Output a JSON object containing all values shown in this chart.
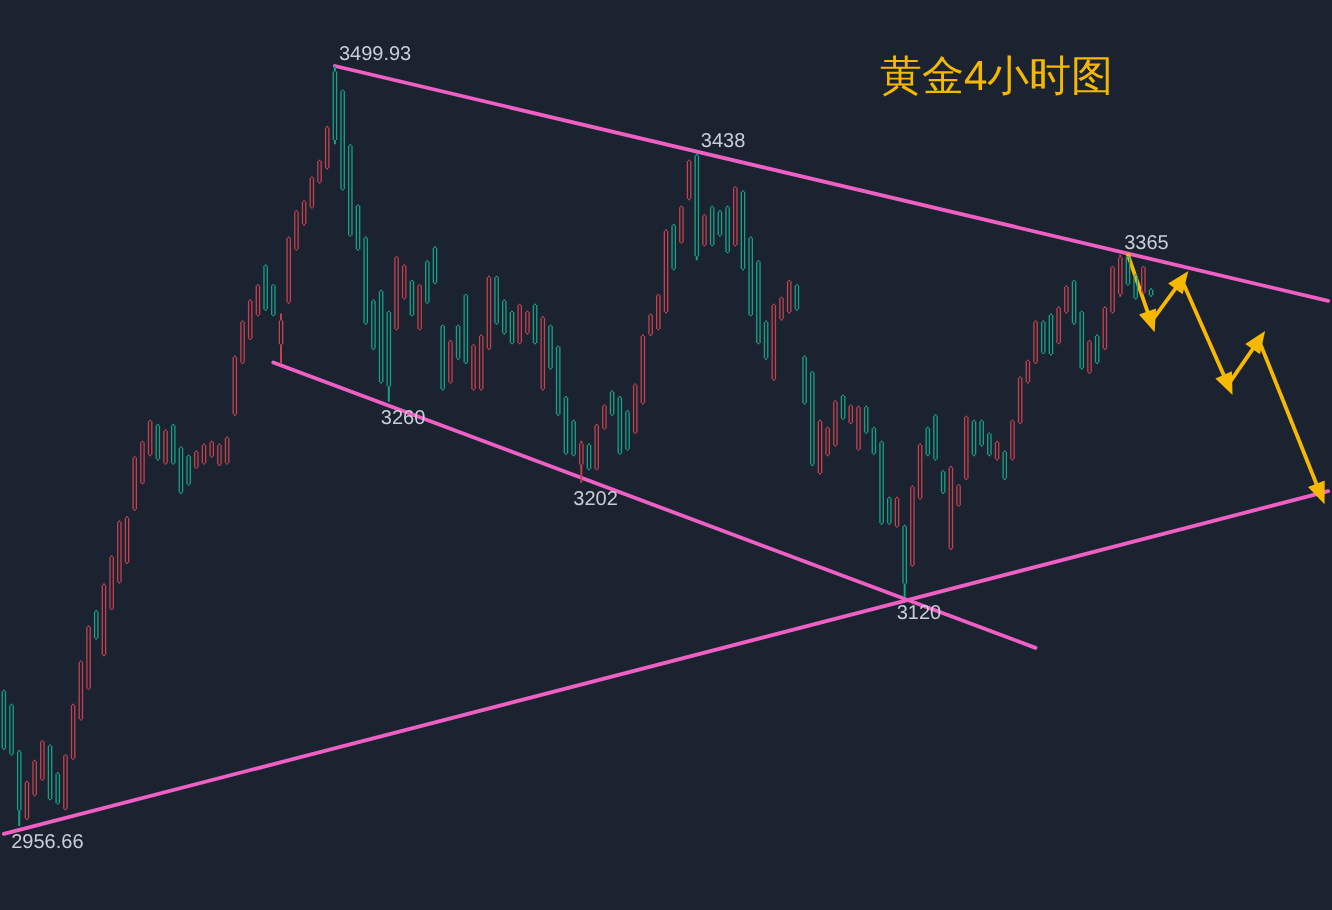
{
  "chart_data": {
    "type": "candlestick",
    "title": "黄金4小时图",
    "categories": [
      null,
      null,
      null,
      null,
      null,
      null,
      null,
      null,
      null,
      null,
      null,
      null,
      null,
      null,
      null,
      null,
      null,
      null,
      null,
      null,
      null,
      null,
      null,
      null,
      null,
      null,
      null,
      null,
      null,
      null,
      null,
      null,
      null,
      null,
      null,
      null,
      null,
      null,
      null,
      null,
      null,
      null,
      null,
      null,
      null,
      null,
      null,
      null,
      null,
      null,
      null,
      null,
      null,
      null,
      null,
      null,
      null,
      null,
      null,
      null,
      null,
      null,
      null,
      null,
      null,
      null,
      null,
      null,
      null,
      null,
      null,
      null,
      null,
      null,
      null,
      null,
      null,
      null,
      null,
      null,
      null,
      null,
      null,
      null,
      null,
      null,
      null,
      null,
      null,
      null,
      null,
      null,
      null,
      null,
      null,
      null,
      null,
      null,
      null,
      null,
      null,
      null,
      null,
      null,
      null,
      null,
      null,
      null,
      null,
      null,
      null,
      null,
      null,
      null,
      null,
      null,
      null,
      null,
      null,
      null,
      null,
      null,
      null,
      null,
      null,
      null,
      null,
      null,
      null,
      null,
      null,
      null,
      null,
      null,
      null,
      null,
      null,
      null,
      null,
      null,
      null,
      null,
      null,
      null,
      null,
      null,
      null,
      null,
      null,
      null,
      null,
      null,
      null,
      null,
      null,
      null,
      null,
      null,
      null,
      null,
      null,
      null,
      null,
      null,
      null,
      null,
      null,
      null,
      null,
      null,
      null,
      null,
      null
    ],
    "ohlc": [
      [
        3053,
        3054,
        3011,
        3012
      ],
      [
        3043,
        3044,
        3007,
        3008
      ],
      [
        3010,
        3011,
        2956.66,
        2968
      ],
      [
        2962,
        2989,
        2961,
        2988
      ],
      [
        2979,
        3004,
        2978,
        3003
      ],
      [
        2990,
        3018,
        2989,
        3017
      ],
      [
        3014,
        3015,
        2975,
        2976
      ],
      [
        2994,
        2995,
        2972,
        2973
      ],
      [
        2969,
        3008,
        2968,
        3007
      ],
      [
        3005,
        3044,
        3004,
        3043
      ],
      [
        3033,
        3075,
        3032,
        3074
      ],
      [
        3055,
        3100,
        3054,
        3099
      ],
      [
        3110,
        3111,
        3090,
        3091
      ],
      [
        3079,
        3130,
        3078,
        3129
      ],
      [
        3112,
        3150,
        3111,
        3149
      ],
      [
        3131,
        3175,
        3130,
        3174
      ],
      [
        3145,
        3178,
        3144,
        3177
      ],
      [
        3183,
        3221,
        3182,
        3220
      ],
      [
        3202,
        3232,
        3201,
        3231
      ],
      [
        3222,
        3247,
        3221,
        3246
      ],
      [
        3243,
        3244,
        3218,
        3219
      ],
      [
        3216,
        3240,
        3215,
        3239
      ],
      [
        3243,
        3244,
        3215,
        3216
      ],
      [
        3227,
        3228,
        3194,
        3195
      ],
      [
        3221,
        3222,
        3200,
        3201
      ],
      [
        3213,
        3225,
        3212,
        3224
      ],
      [
        3216,
        3230,
        3215,
        3229
      ],
      [
        3221,
        3232,
        3220,
        3231
      ],
      [
        3215,
        3230,
        3214,
        3229
      ],
      [
        3216,
        3235,
        3215,
        3234
      ],
      [
        3251,
        3293,
        3250,
        3292
      ],
      [
        3288,
        3318,
        3287,
        3317
      ],
      [
        3305,
        3333,
        3304,
        3332
      ],
      [
        3322,
        3344,
        3321,
        3343
      ],
      [
        3357,
        3358,
        3325,
        3326
      ],
      [
        3343,
        3344,
        3321,
        3322
      ],
      [
        3301,
        3323,
        3287,
        3318
      ],
      [
        3331,
        3378,
        3330,
        3377
      ],
      [
        3369,
        3397,
        3368,
        3396
      ],
      [
        3387,
        3404,
        3386,
        3403
      ],
      [
        3399,
        3421,
        3398,
        3420
      ],
      [
        3417,
        3433,
        3416,
        3432
      ],
      [
        3427,
        3457,
        3426,
        3456
      ],
      [
        3496,
        3499.93,
        3444,
        3447
      ],
      [
        3482,
        3483,
        3411,
        3412
      ],
      [
        3443,
        3444,
        3378,
        3379
      ],
      [
        3400,
        3401,
        3368,
        3369
      ],
      [
        3377,
        3378,
        3315,
        3316
      ],
      [
        3332,
        3333,
        3297,
        3298
      ],
      [
        3339,
        3340,
        3273,
        3274
      ],
      [
        3324,
        3325,
        3260,
        3271
      ],
      [
        3312,
        3364,
        3311,
        3363
      ],
      [
        3334,
        3358,
        3333,
        3357
      ],
      [
        3346,
        3347,
        3321,
        3322
      ],
      [
        3312,
        3344,
        3311,
        3343
      ],
      [
        3360,
        3361,
        3330,
        3331
      ],
      [
        3370,
        3371,
        3344,
        3345
      ],
      [
        3314,
        3315,
        3268,
        3269
      ],
      [
        3274,
        3304,
        3273,
        3303
      ],
      [
        3314,
        3315,
        3290,
        3291
      ],
      [
        3336,
        3337,
        3287,
        3288
      ],
      [
        3269,
        3301,
        3268,
        3300
      ],
      [
        3269,
        3308,
        3268,
        3307
      ],
      [
        3298,
        3350,
        3297,
        3349
      ],
      [
        3349,
        3350,
        3315,
        3316
      ],
      [
        3332,
        3333,
        3308,
        3309
      ],
      [
        3324,
        3325,
        3301,
        3302
      ],
      [
        3302,
        3330,
        3301,
        3329
      ],
      [
        3309,
        3325,
        3308,
        3324
      ],
      [
        3329,
        3330,
        3301,
        3302
      ],
      [
        3269,
        3321,
        3268,
        3320
      ],
      [
        3314,
        3315,
        3283,
        3284
      ],
      [
        3299,
        3300,
        3250,
        3251
      ],
      [
        3263,
        3264,
        3222,
        3223
      ],
      [
        3246,
        3247,
        3221,
        3222
      ],
      [
        3215,
        3232,
        3202,
        3230
      ],
      [
        3229,
        3230,
        3211,
        3212
      ],
      [
        3212,
        3244,
        3211,
        3243
      ],
      [
        3241,
        3258,
        3240,
        3257
      ],
      [
        3267,
        3268,
        3250,
        3251
      ],
      [
        3263,
        3264,
        3222,
        3223
      ],
      [
        3253,
        3254,
        3225,
        3226
      ],
      [
        3238,
        3273,
        3237,
        3272
      ],
      [
        3259,
        3308,
        3258,
        3307
      ],
      [
        3308,
        3323,
        3307,
        3322
      ],
      [
        3312,
        3337,
        3311,
        3336
      ],
      [
        3324,
        3383,
        3323,
        3382
      ],
      [
        3386,
        3387,
        3354,
        3355
      ],
      [
        3374,
        3400,
        3373,
        3399
      ],
      [
        3405,
        3433,
        3404,
        3432
      ],
      [
        3436,
        3438,
        3361,
        3364
      ],
      [
        3372,
        3394,
        3371,
        3393
      ],
      [
        3399,
        3400,
        3371,
        3372
      ],
      [
        3396,
        3397,
        3378,
        3379
      ],
      [
        3399,
        3400,
        3366,
        3367
      ],
      [
        3372,
        3414,
        3371,
        3413
      ],
      [
        3410,
        3411,
        3354,
        3355
      ],
      [
        3377,
        3378,
        3321,
        3322
      ],
      [
        3360,
        3361,
        3301,
        3302
      ],
      [
        3317,
        3318,
        3290,
        3291
      ],
      [
        3276,
        3330,
        3275,
        3329
      ],
      [
        3319,
        3335,
        3318,
        3334
      ],
      [
        3324,
        3347,
        3323,
        3346
      ],
      [
        3343,
        3344,
        3325,
        3326
      ],
      [
        3292,
        3293,
        3258,
        3259
      ],
      [
        3281,
        3282,
        3214,
        3215
      ],
      [
        3209,
        3247,
        3208,
        3246
      ],
      [
        3222,
        3242,
        3221,
        3241
      ],
      [
        3229,
        3261,
        3228,
        3260
      ],
      [
        3264,
        3265,
        3247,
        3248
      ],
      [
        3245,
        3258,
        3244,
        3257
      ],
      [
        3226,
        3257,
        3225,
        3256
      ],
      [
        3256,
        3257,
        3237,
        3238
      ],
      [
        3241,
        3242,
        3222,
        3223
      ],
      [
        3231,
        3232,
        3172,
        3173
      ],
      [
        3191,
        3192,
        3172,
        3173
      ],
      [
        3171,
        3192,
        3170,
        3191
      ],
      [
        3171,
        3172,
        3120,
        3130
      ],
      [
        3143,
        3200,
        3142,
        3199
      ],
      [
        3191,
        3230,
        3190,
        3229
      ],
      [
        3241,
        3242,
        3221,
        3222
      ],
      [
        3250,
        3251,
        3218,
        3219
      ],
      [
        3210,
        3211,
        3194,
        3195
      ],
      [
        3155,
        3214,
        3154,
        3213
      ],
      [
        3186,
        3201,
        3185,
        3200
      ],
      [
        3205,
        3250,
        3204,
        3249
      ],
      [
        3246,
        3247,
        3221,
        3222
      ],
      [
        3246,
        3247,
        3228,
        3229
      ],
      [
        3237,
        3238,
        3221,
        3222
      ],
      [
        3219,
        3232,
        3218,
        3231
      ],
      [
        3224,
        3225,
        3204,
        3205
      ],
      [
        3219,
        3247,
        3218,
        3246
      ],
      [
        3245,
        3278,
        3244,
        3277
      ],
      [
        3274,
        3290,
        3273,
        3289
      ],
      [
        3288,
        3318,
        3287,
        3317
      ],
      [
        3317,
        3318,
        3294,
        3295
      ],
      [
        3322,
        3323,
        3293,
        3294
      ],
      [
        3302,
        3328,
        3301,
        3327
      ],
      [
        3324,
        3343,
        3323,
        3342
      ],
      [
        3346,
        3347,
        3315,
        3316
      ],
      [
        3324,
        3325,
        3283,
        3284
      ],
      [
        3281,
        3304,
        3280,
        3303
      ],
      [
        3307,
        3308,
        3287,
        3288
      ],
      [
        3298,
        3328,
        3297,
        3327
      ],
      [
        3324,
        3357,
        3323,
        3356
      ],
      [
        3337,
        3365,
        3335,
        3363
      ],
      [
        3363,
        3364,
        3343,
        3344
      ],
      [
        3350,
        3351,
        3333,
        3334
      ],
      [
        3338,
        3357,
        3337,
        3356
      ],
      [
        3340,
        3341,
        3335,
        3336
      ],
      null,
      null,
      null,
      null,
      null,
      null,
      null,
      null,
      null,
      null,
      null,
      null,
      null,
      null,
      null,
      null,
      null,
      null,
      null,
      null,
      null,
      null,
      null
    ],
    "series": [
      {
        "type": "line",
        "color": "#f060c4",
        "values": [
          null,
          null,
          null,
          null,
          null,
          null,
          null,
          null,
          null,
          null,
          null,
          null,
          null,
          null,
          null,
          null,
          null,
          null,
          null,
          null,
          null,
          null,
          null,
          null,
          null,
          null,
          null,
          null,
          null,
          null,
          null,
          null,
          null,
          null,
          null,
          null,
          null,
          null,
          null,
          null,
          null,
          null,
          null,
          3499.93,
          null,
          null,
          null,
          null,
          null,
          null,
          null,
          null,
          null,
          null,
          null,
          null,
          null,
          null,
          null,
          null,
          null,
          null,
          null,
          null,
          null,
          null,
          null,
          null,
          null,
          null,
          null,
          null,
          null,
          null,
          null,
          null,
          null,
          null,
          null,
          null,
          null,
          null,
          null,
          null,
          null,
          null,
          null,
          null,
          null,
          null,
          null,
          null,
          null,
          null,
          null,
          null,
          null,
          null,
          null,
          null,
          null,
          null,
          null,
          null,
          null,
          null,
          null,
          null,
          null,
          null,
          null,
          null,
          null,
          null,
          null,
          null,
          null,
          null,
          null,
          null,
          null,
          null,
          null,
          null,
          null,
          null,
          null,
          null,
          null,
          null,
          null,
          null,
          null,
          null,
          null,
          null,
          null,
          null,
          null,
          null,
          null,
          null,
          null,
          null,
          null,
          null,
          null,
          null,
          null,
          null,
          null,
          null,
          null,
          null,
          null,
          null,
          null,
          null,
          null,
          null,
          null,
          null,
          null,
          null,
          null,
          null,
          null,
          null,
          null,
          null,
          null,
          null,
          3332
        ]
      },
      {
        "type": "line",
        "color": "#f060c4",
        "values": [
          null,
          null,
          null,
          null,
          null,
          null,
          null,
          null,
          null,
          null,
          null,
          null,
          null,
          null,
          null,
          null,
          null,
          null,
          null,
          null,
          null,
          null,
          null,
          null,
          null,
          null,
          null,
          null,
          null,
          null,
          null,
          null,
          null,
          null,
          null,
          3288,
          null,
          null,
          null,
          null,
          null,
          null,
          null,
          null,
          null,
          null,
          null,
          null,
          null,
          null,
          null,
          null,
          null,
          null,
          null,
          null,
          null,
          null,
          null,
          null,
          null,
          null,
          null,
          null,
          null,
          null,
          null,
          null,
          null,
          null,
          null,
          null,
          null,
          null,
          null,
          null,
          null,
          null,
          null,
          null,
          null,
          null,
          null,
          null,
          null,
          null,
          null,
          null,
          null,
          null,
          null,
          null,
          null,
          null,
          null,
          null,
          null,
          null,
          null,
          null,
          null,
          null,
          null,
          null,
          null,
          null,
          null,
          null,
          null,
          null,
          null,
          null,
          null,
          null,
          null,
          null,
          null,
          null,
          null,
          null,
          null,
          null,
          null,
          null,
          null,
          null,
          null,
          null,
          null,
          null,
          null,
          null,
          null,
          null,
          3084,
          null,
          null,
          null,
          null,
          null,
          null,
          null,
          null,
          null,
          null,
          null,
          null,
          null,
          null,
          null,
          null,
          null,
          null,
          null,
          null,
          null,
          null,
          null,
          null,
          null,
          null,
          null,
          null,
          null,
          null,
          null,
          null,
          null,
          null,
          null,
          null,
          null,
          null
        ]
      },
      {
        "type": "line",
        "color": "#f060c4",
        "values": [
          2951,
          null,
          null,
          null,
          null,
          null,
          null,
          null,
          null,
          null,
          null,
          null,
          null,
          null,
          null,
          null,
          null,
          null,
          null,
          null,
          null,
          null,
          null,
          null,
          null,
          null,
          null,
          null,
          null,
          null,
          null,
          null,
          null,
          null,
          null,
          null,
          null,
          null,
          null,
          null,
          null,
          null,
          null,
          null,
          null,
          null,
          null,
          null,
          null,
          null,
          null,
          null,
          null,
          null,
          null,
          null,
          null,
          null,
          null,
          null,
          null,
          null,
          null,
          null,
          null,
          null,
          null,
          null,
          null,
          null,
          null,
          null,
          null,
          null,
          null,
          null,
          null,
          null,
          null,
          null,
          null,
          null,
          null,
          null,
          null,
          null,
          null,
          null,
          null,
          null,
          null,
          null,
          null,
          null,
          null,
          null,
          null,
          null,
          null,
          null,
          null,
          null,
          null,
          null,
          null,
          null,
          null,
          null,
          null,
          null,
          null,
          null,
          null,
          null,
          null,
          null,
          null,
          null,
          null,
          null,
          null,
          null,
          null,
          null,
          null,
          null,
          null,
          null,
          null,
          null,
          null,
          null,
          null,
          null,
          null,
          null,
          null,
          null,
          null,
          null,
          null,
          null,
          null,
          null,
          null,
          null,
          null,
          null,
          null,
          null,
          null,
          null,
          null,
          null,
          null,
          null,
          null,
          null,
          null,
          null,
          null,
          null,
          null,
          null,
          null,
          null,
          null,
          null,
          null,
          null,
          null,
          null,
          3196
        ]
      },
      {
        "type": "line",
        "color": "#f7b900",
        "marker": "triangle",
        "values": [
          null,
          null,
          null,
          null,
          null,
          null,
          null,
          null,
          null,
          null,
          null,
          null,
          null,
          null,
          null,
          null,
          null,
          null,
          null,
          null,
          null,
          null,
          null,
          null,
          null,
          null,
          null,
          null,
          null,
          null,
          null,
          null,
          null,
          null,
          null,
          null,
          null,
          null,
          null,
          null,
          null,
          null,
          null,
          null,
          null,
          null,
          null,
          null,
          null,
          null,
          null,
          null,
          null,
          null,
          null,
          null,
          null,
          null,
          null,
          null,
          null,
          null,
          null,
          null,
          null,
          null,
          null,
          null,
          null,
          null,
          null,
          null,
          null,
          null,
          null,
          null,
          null,
          null,
          null,
          null,
          null,
          null,
          null,
          null,
          null,
          null,
          null,
          null,
          null,
          null,
          null,
          null,
          null,
          null,
          null,
          null,
          null,
          null,
          null,
          null,
          null,
          null,
          null,
          null,
          null,
          null,
          null,
          null,
          null,
          null,
          null,
          null,
          null,
          null,
          null,
          null,
          null,
          null,
          null,
          null,
          null,
          null,
          null,
          null,
          null,
          null,
          null,
          null,
          null,
          null,
          null,
          null,
          null,
          null,
          null,
          null,
          null,
          null,
          null,
          null,
          null,
          null,
          null,
          null,
          null,
          null,
          3365,
          null,
          null,
          3317,
          null,
          null,
          null,
          3347,
          null,
          null,
          null,
          null,
          null,
          3272,
          null,
          null,
          null,
          3304,
          null,
          null,
          null,
          null,
          null,
          null,
          null,
          3194,
          null
        ]
      }
    ],
    "annotations": [
      {
        "text": "3499.93",
        "y": 3499.93
      },
      {
        "text": "3438",
        "y": 3438
      },
      {
        "text": "3365",
        "y": 3365
      },
      {
        "text": "3260",
        "y": 3260
      },
      {
        "text": "3202",
        "y": 3202
      },
      {
        "text": "3120",
        "y": 3120
      },
      {
        "text": "2956.66",
        "y": 2956.66
      }
    ]
  }
}
